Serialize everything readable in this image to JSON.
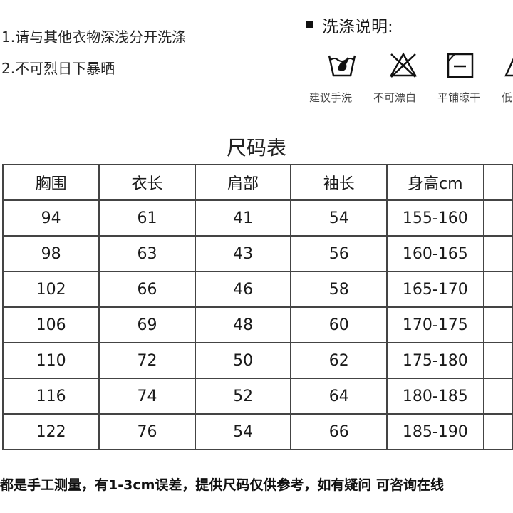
{
  "notes": [
    "1.请与其他衣物深浅分开洗涤",
    "2.不可烈日下暴晒"
  ],
  "wash": {
    "title": "洗涤说明:",
    "icons": [
      {
        "icon": "hand-wash-icon",
        "label": "建议手洗"
      },
      {
        "icon": "no-bleach-icon",
        "label": "不可漂白"
      },
      {
        "icon": "dry-flat-icon",
        "label": "平铺晾干"
      },
      {
        "icon": "iron-low-icon",
        "label": "低"
      }
    ]
  },
  "size_table": {
    "title": "尺码表",
    "headers": [
      "胸围",
      "衣长",
      "肩部",
      "袖长",
      "身高cm"
    ],
    "rows": [
      [
        "94",
        "61",
        "41",
        "54",
        "155-160"
      ],
      [
        "98",
        "63",
        "43",
        "56",
        "160-165"
      ],
      [
        "102",
        "66",
        "46",
        "58",
        "165-170"
      ],
      [
        "106",
        "69",
        "48",
        "60",
        "170-175"
      ],
      [
        "110",
        "72",
        "50",
        "62",
        "175-180"
      ],
      [
        "116",
        "74",
        "52",
        "64",
        "180-185"
      ],
      [
        "122",
        "76",
        "54",
        "66",
        "185-190"
      ]
    ]
  },
  "footer": "都是手工测量，有1-3cm误差，提供尺码仅供参考，如有疑问 可咨询在线"
}
